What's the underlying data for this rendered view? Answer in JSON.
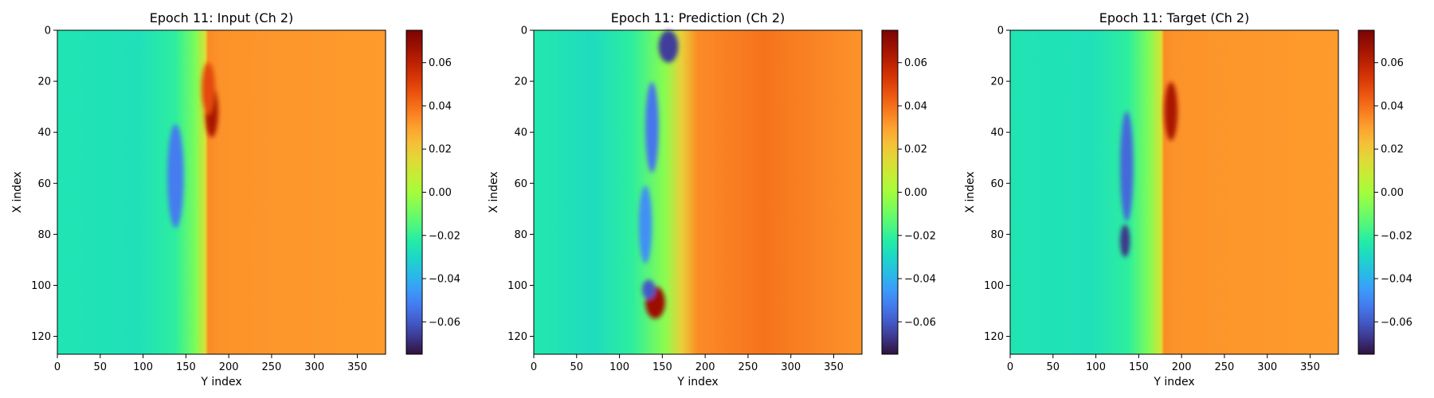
{
  "chart_data": [
    {
      "type": "heatmap",
      "title": "Epoch 11: Input (Ch 2)",
      "xlabel": "Y index",
      "ylabel": "X index",
      "xlim": [
        0,
        383
      ],
      "ylim": [
        127,
        0
      ],
      "xticks": [
        0,
        50,
        100,
        150,
        200,
        250,
        300,
        350
      ],
      "yticks": [
        0,
        20,
        40,
        60,
        80,
        100,
        120
      ],
      "colormap": "turbo",
      "clim": [
        -0.075,
        0.075
      ],
      "colorbar_ticks": [
        0.06,
        0.04,
        0.02,
        0.0,
        -0.02,
        -0.04,
        -0.06
      ],
      "colorbar_tick_labels": [
        "0.06",
        "0.04",
        "0.02",
        "0.00",
        "−0.02",
        "−0.04",
        "−0.06"
      ],
      "grid": false
    },
    {
      "type": "heatmap",
      "title": "Epoch 11: Prediction (Ch 2)",
      "xlabel": "Y index",
      "ylabel": "X index",
      "xlim": [
        0,
        383
      ],
      "ylim": [
        127,
        0
      ],
      "xticks": [
        0,
        50,
        100,
        150,
        200,
        250,
        300,
        350
      ],
      "yticks": [
        0,
        20,
        40,
        60,
        80,
        100,
        120
      ],
      "colormap": "turbo",
      "clim": [
        -0.075,
        0.075
      ],
      "colorbar_ticks": [
        0.06,
        0.04,
        0.02,
        0.0,
        -0.02,
        -0.04,
        -0.06
      ],
      "colorbar_tick_labels": [
        "0.06",
        "0.04",
        "0.02",
        "0.00",
        "−0.02",
        "−0.04",
        "−0.06"
      ],
      "grid": false
    },
    {
      "type": "heatmap",
      "title": "Epoch 11: Target (Ch 2)",
      "xlabel": "Y index",
      "ylabel": "X index",
      "xlim": [
        0,
        383
      ],
      "ylim": [
        127,
        0
      ],
      "xticks": [
        0,
        50,
        100,
        150,
        200,
        250,
        300,
        350
      ],
      "yticks": [
        0,
        20,
        40,
        60,
        80,
        100,
        120
      ],
      "colormap": "turbo",
      "clim": [
        -0.075,
        0.075
      ],
      "colorbar_ticks": [
        0.06,
        0.04,
        0.02,
        0.0,
        -0.02,
        -0.04,
        -0.06
      ],
      "colorbar_tick_labels": [
        "0.06",
        "0.04",
        "0.02",
        "0.00",
        "−0.02",
        "−0.04",
        "−0.06"
      ],
      "grid": false
    }
  ]
}
